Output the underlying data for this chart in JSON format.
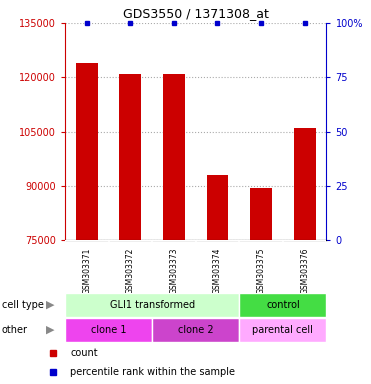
{
  "title": "GDS3550 / 1371308_at",
  "samples": [
    "GSM303371",
    "GSM303372",
    "GSM303373",
    "GSM303374",
    "GSM303375",
    "GSM303376"
  ],
  "counts": [
    124000,
    121000,
    121000,
    93000,
    89500,
    106000
  ],
  "ylim_left": [
    75000,
    135000
  ],
  "yticks_left": [
    75000,
    90000,
    105000,
    120000,
    135000
  ],
  "ylim_right": [
    0,
    100
  ],
  "yticks_right": [
    0,
    25,
    50,
    75,
    100
  ],
  "bar_color": "#cc0000",
  "dot_color": "#0000cc",
  "cell_type_groups": [
    {
      "label": "GLI1 transformed",
      "color": "#ccffcc",
      "span": [
        0,
        4
      ]
    },
    {
      "label": "control",
      "color": "#44dd44",
      "span": [
        4,
        6
      ]
    }
  ],
  "other_groups": [
    {
      "label": "clone 1",
      "color": "#ee44ee",
      "span": [
        0,
        2
      ]
    },
    {
      "label": "clone 2",
      "color": "#cc44cc",
      "span": [
        2,
        4
      ]
    },
    {
      "label": "parental cell",
      "color": "#ffaaff",
      "span": [
        4,
        6
      ]
    }
  ],
  "legend_items": [
    {
      "label": "count",
      "color": "#cc0000"
    },
    {
      "label": "percentile rank within the sample",
      "color": "#0000cc"
    }
  ],
  "grid_color": "#aaaaaa",
  "background_color": "#ffffff",
  "bar_width": 0.5
}
